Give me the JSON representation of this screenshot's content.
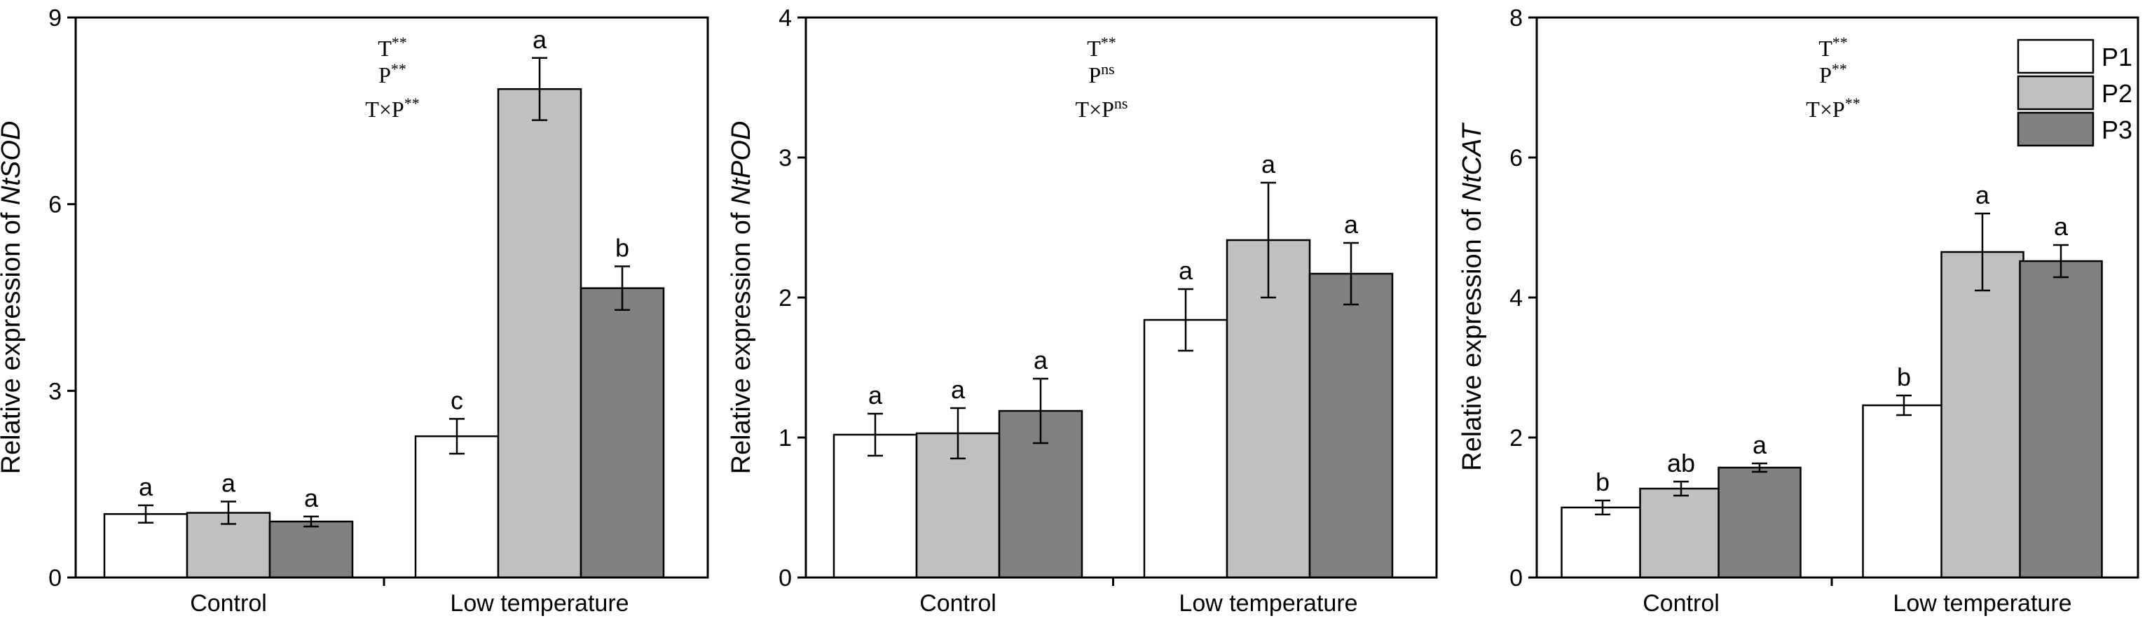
{
  "chart_data": [
    {
      "type": "bar",
      "panel": "NtSOD",
      "ylabel_prefix": "Relative expression of ",
      "ylabel_gene": "NtSOD",
      "categories": [
        "Control",
        "Low temperature"
      ],
      "ylim": [
        0,
        9
      ],
      "yticks": [
        0,
        3,
        6,
        9
      ],
      "series": [
        {
          "name": "P1",
          "values": [
            1.02,
            2.27
          ],
          "errors": [
            0.14,
            0.28
          ],
          "labels": [
            "a",
            "c"
          ]
        },
        {
          "name": "P2",
          "values": [
            1.04,
            7.85
          ],
          "errors": [
            0.18,
            0.5
          ],
          "labels": [
            "a",
            "a"
          ]
        },
        {
          "name": "P3",
          "values": [
            0.9,
            4.65
          ],
          "errors": [
            0.08,
            0.35
          ],
          "labels": [
            "a",
            "b"
          ]
        }
      ],
      "stats": [
        {
          "base": "T",
          "sup": "**"
        },
        {
          "base": "P",
          "sup": "**"
        },
        {
          "base": "T×P",
          "sup": "**"
        }
      ],
      "show_legend": false
    },
    {
      "type": "bar",
      "panel": "NtPOD",
      "ylabel_prefix": "Relative expression of ",
      "ylabel_gene": "NtPOD",
      "categories": [
        "Control",
        "Low temperature"
      ],
      "ylim": [
        0,
        4
      ],
      "yticks": [
        0,
        1,
        2,
        3,
        4
      ],
      "series": [
        {
          "name": "P1",
          "values": [
            1.02,
            1.84
          ],
          "errors": [
            0.15,
            0.22
          ],
          "labels": [
            "a",
            "a"
          ]
        },
        {
          "name": "P2",
          "values": [
            1.03,
            2.41
          ],
          "errors": [
            0.18,
            0.41
          ],
          "labels": [
            "a",
            "a"
          ]
        },
        {
          "name": "P3",
          "values": [
            1.19,
            2.17
          ],
          "errors": [
            0.23,
            0.22
          ],
          "labels": [
            "a",
            "a"
          ]
        }
      ],
      "stats": [
        {
          "base": "T",
          "sup": "**"
        },
        {
          "base": "P",
          "sup": "ns"
        },
        {
          "base": "T×P",
          "sup": "ns"
        }
      ],
      "show_legend": false
    },
    {
      "type": "bar",
      "panel": "NtCAT",
      "ylabel_prefix": "Relative expression of ",
      "ylabel_gene": "NtCAT",
      "categories": [
        "Control",
        "Low temperature"
      ],
      "ylim": [
        0,
        8
      ],
      "yticks": [
        0,
        2,
        4,
        6,
        8
      ],
      "series": [
        {
          "name": "P1",
          "values": [
            1.0,
            2.46
          ],
          "errors": [
            0.1,
            0.14
          ],
          "labels": [
            "b",
            "b"
          ]
        },
        {
          "name": "P2",
          "values": [
            1.27,
            4.65
          ],
          "errors": [
            0.1,
            0.55
          ],
          "labels": [
            "ab",
            "a"
          ]
        },
        {
          "name": "P3",
          "values": [
            1.57,
            4.52
          ],
          "errors": [
            0.06,
            0.23
          ],
          "labels": [
            "a",
            "a"
          ]
        }
      ],
      "stats": [
        {
          "base": "T",
          "sup": "**"
        },
        {
          "base": "P",
          "sup": "**"
        },
        {
          "base": "T×P",
          "sup": "**"
        }
      ],
      "show_legend": true
    }
  ],
  "legend": {
    "items": [
      {
        "name": "P1",
        "color": "#ffffff"
      },
      {
        "name": "P2",
        "color": "#c0c0c0"
      },
      {
        "name": "P3",
        "color": "#808080"
      }
    ]
  },
  "colors": {
    "P1": "#ffffff",
    "P2": "#c0c0c0",
    "P3": "#808080",
    "edge": "#000000"
  }
}
